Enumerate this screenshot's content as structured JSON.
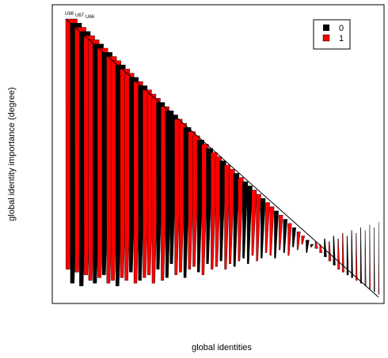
{
  "chart_data": {
    "type": "bar",
    "xlabel": "global identities",
    "ylabel": "global identity importance (degree)",
    "grid": false,
    "legend": {
      "position": "top-right",
      "entries": [
        {
          "label": "0",
          "color": "#000000"
        },
        {
          "label": "1",
          "color": "#ff0000"
        }
      ]
    },
    "annotations": [
      "U98",
      "U67",
      "U66"
    ],
    "series_colors": {
      "0": "#000000",
      "1": "#ff0000"
    },
    "groups": [
      1,
      0,
      1,
      0,
      1,
      1,
      0,
      1,
      0,
      1,
      1,
      0,
      1,
      1,
      0,
      1,
      0,
      1,
      1,
      1,
      0,
      1,
      0,
      0,
      1,
      1,
      0,
      1,
      1,
      0,
      1,
      0,
      1,
      1,
      0,
      1,
      1,
      0,
      1,
      0,
      0,
      1,
      1,
      0,
      1,
      1,
      0,
      1,
      0,
      1,
      0,
      1,
      1,
      0,
      0,
      1,
      1,
      0,
      1,
      0,
      1,
      1,
      0,
      0,
      1,
      0,
      1,
      1,
      0,
      1
    ],
    "degree": [
      1.0,
      0.985,
      0.97,
      0.955,
      0.94,
      0.925,
      0.91,
      0.895,
      0.88,
      0.865,
      0.85,
      0.835,
      0.82,
      0.805,
      0.79,
      0.775,
      0.76,
      0.745,
      0.73,
      0.715,
      0.7,
      0.685,
      0.67,
      0.655,
      0.64,
      0.625,
      0.61,
      0.595,
      0.58,
      0.565,
      0.55,
      0.535,
      0.52,
      0.505,
      0.49,
      0.475,
      0.46,
      0.445,
      0.43,
      0.415,
      0.4,
      0.385,
      0.37,
      0.355,
      0.34,
      0.325,
      0.31,
      0.295,
      0.28,
      0.265,
      0.25,
      0.235,
      0.22,
      0.205,
      0.19,
      0.175,
      0.16,
      0.145,
      0.13,
      0.115,
      0.1,
      0.09,
      0.08,
      0.07,
      0.06,
      0.05,
      0.04,
      0.03,
      0.02,
      0.01
    ],
    "lower": [
      0.1,
      0.05,
      0.09,
      0.04,
      0.08,
      0.06,
      0.05,
      0.07,
      0.08,
      0.05,
      0.06,
      0.04,
      0.07,
      0.06,
      0.09,
      0.05,
      0.06,
      0.07,
      0.08,
      0.05,
      0.1,
      0.06,
      0.07,
      0.12,
      0.08,
      0.09,
      0.07,
      0.1,
      0.11,
      0.09,
      0.08,
      0.12,
      0.1,
      0.11,
      0.13,
      0.1,
      0.12,
      0.11,
      0.13,
      0.14,
      0.12,
      0.15,
      0.13,
      0.14,
      0.16,
      0.15,
      0.14,
      0.17,
      0.16,
      0.15,
      0.18,
      0.17,
      0.19,
      0.16,
      0.18,
      0.2,
      0.19,
      0.21,
      0.2,
      0.22,
      0.21,
      0.23,
      0.22,
      0.24,
      0.23,
      0.25,
      0.24,
      0.26,
      0.25,
      0.27
    ]
  }
}
